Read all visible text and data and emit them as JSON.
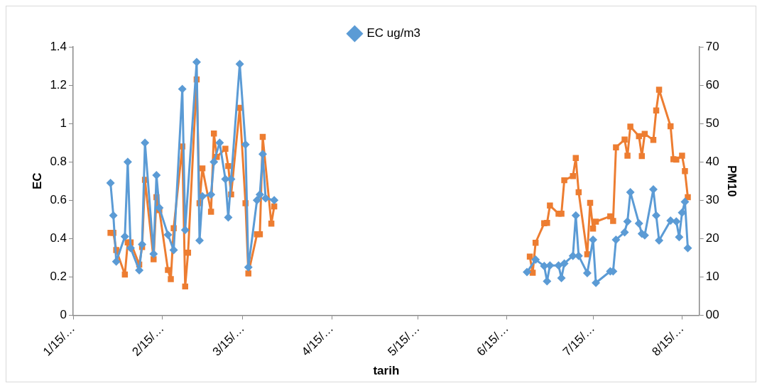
{
  "chart_data": {
    "type": "line",
    "xlabel": "tarih",
    "ylabel": "EC",
    "y2label": "PM10",
    "legend": "top",
    "grid": false,
    "xlim": [
      "--01-15",
      "--08-21"
    ],
    "xticks": [
      {
        "value": "--01-15",
        "label": "1/15/…"
      },
      {
        "value": "--02-15",
        "label": "2/15/…"
      },
      {
        "value": "--03-15",
        "label": "3/15/…"
      },
      {
        "value": "--04-15",
        "label": "4/15/…"
      },
      {
        "value": "--05-15",
        "label": "5/15/…"
      },
      {
        "value": "--06-15",
        "label": "6/15/…"
      },
      {
        "value": "--07-15",
        "label": "7/15/…"
      },
      {
        "value": "--08-15",
        "label": "8/15/…"
      }
    ],
    "ylim": [
      0,
      1.4
    ],
    "yticks": [
      0,
      0.2,
      0.4,
      0.6,
      0.8,
      1,
      1.2,
      1.4
    ],
    "y2lim": [
      0,
      70
    ],
    "y2ticks": [
      {
        "value": 0,
        "label": "00"
      },
      10,
      20,
      30,
      40,
      50,
      60,
      70
    ],
    "series": [
      {
        "name": "EC ug/m3",
        "color": "#5b9bd5",
        "marker": "diamond",
        "x": [
          "--01-28",
          "--01-29",
          "--01-30",
          "--02-02",
          "--02-03",
          "--02-04",
          "--02-07",
          "--02-08",
          "--02-09",
          "--02-12",
          "--02-13",
          "--02-14",
          "--02-17",
          "--02-19",
          "--02-22",
          "--02-23",
          "--02-27",
          "--02-28",
          "--03-01",
          "--03-04",
          "--03-05",
          "--03-07",
          "--03-09",
          "--03-10",
          "--03-11",
          "--03-14",
          "--03-16",
          "--03-17",
          "--03-20",
          "--03-21",
          "--03-22",
          "--03-23",
          "--03-26",
          "--05-01",
          "--06-22",
          "--06-25",
          "--06-28",
          "--06-29",
          "--06-30",
          "--07-03",
          "--07-04",
          "--07-05",
          "--07-08",
          "--07-09",
          "--07-10",
          "--07-13",
          "--07-15",
          "--07-16",
          "--07-21",
          "--07-22",
          "--07-23",
          "--07-26",
          "--07-27",
          "--07-28",
          "--07-31",
          "--08-01",
          "--08-02",
          "--08-05",
          "--08-06",
          "--08-07",
          "--08-11",
          "--08-13",
          "--08-14",
          "--08-15",
          "--08-16",
          "--08-17"
        ],
        "values": [
          0.69,
          0.52,
          0.28,
          0.41,
          0.8,
          0.35,
          0.235,
          0.37,
          0.9,
          0.32,
          0.73,
          0.56,
          0.42,
          0.34,
          1.18,
          0.445,
          1.32,
          0.39,
          0.62,
          0.63,
          0.8,
          0.9,
          0.71,
          0.51,
          0.71,
          1.31,
          0.89,
          0.25,
          0.6,
          0.63,
          0.84,
          0.61,
          0.6,
          null,
          0.225,
          0.29,
          0.257,
          0.177,
          0.26,
          0.26,
          0.194,
          0.27,
          0.31,
          0.52,
          0.31,
          0.22,
          0.394,
          0.169,
          0.229,
          0.229,
          0.394,
          0.433,
          0.489,
          0.642,
          0.479,
          0.425,
          0.417,
          0.656,
          0.52,
          0.39,
          0.494,
          0.489,
          0.408,
          0.535,
          0.592,
          0.35
        ]
      },
      {
        "color": "#ed7d31",
        "marker": "square",
        "axis": "y2",
        "x": [
          "--01-28",
          "--01-29",
          "--01-30",
          "--02-02",
          "--02-03",
          "--02-04",
          "--02-07",
          "--02-08",
          "--02-09",
          "--02-12",
          "--02-13",
          "--02-14",
          "--02-17",
          "--02-18",
          "--02-19",
          "--02-22",
          "--02-23",
          "--02-24",
          "--02-27",
          "--02-28",
          "--03-01",
          "--03-04",
          "--03-05",
          "--03-06",
          "--03-09",
          "--03-10",
          "--03-11",
          "--03-14",
          "--03-16",
          "--03-17",
          "--03-20",
          "--03-21",
          "--03-22",
          "--03-25",
          "--03-26",
          "--05-01",
          "--06-23",
          "--06-24",
          "--06-25",
          "--06-28",
          "--06-29",
          "--06-30",
          "--07-03",
          "--07-04",
          "--07-05",
          "--07-08",
          "--07-09",
          "--07-10",
          "--07-13",
          "--07-14",
          "--07-15",
          "--07-16",
          "--07-21",
          "--07-22",
          "--07-23",
          "--07-26",
          "--07-27",
          "--07-28",
          "--07-31",
          "--08-01",
          "--08-02",
          "--08-05",
          "--08-06",
          "--08-07",
          "--08-11",
          "--08-12",
          "--08-13",
          "--08-15",
          "--08-16",
          "--08-17"
        ],
        "values": [
          21.5,
          21.5,
          17,
          10.6,
          19,
          19,
          13.2,
          17.8,
          35.3,
          14.6,
          30.8,
          27.4,
          11.8,
          9.4,
          22.7,
          44,
          7.5,
          16.3,
          61.5,
          29.2,
          38.3,
          27,
          47.4,
          41.3,
          43.4,
          38.9,
          31.5,
          54.1,
          29.2,
          10.9,
          21.1,
          21.1,
          46.5,
          23.9,
          28.4,
          null,
          15.3,
          11.1,
          18.9,
          24,
          24.1,
          28.6,
          26.5,
          26.5,
          35.2,
          36.3,
          41,
          32.1,
          15.9,
          29.3,
          22.6,
          24.4,
          25.8,
          24.6,
          43.8,
          45.8,
          41.6,
          49.2,
          46.7,
          41.5,
          47.3,
          45.7,
          53.4,
          58.8,
          49.3,
          40.7,
          40.6,
          41.6,
          37.6,
          30.8
        ]
      }
    ]
  }
}
